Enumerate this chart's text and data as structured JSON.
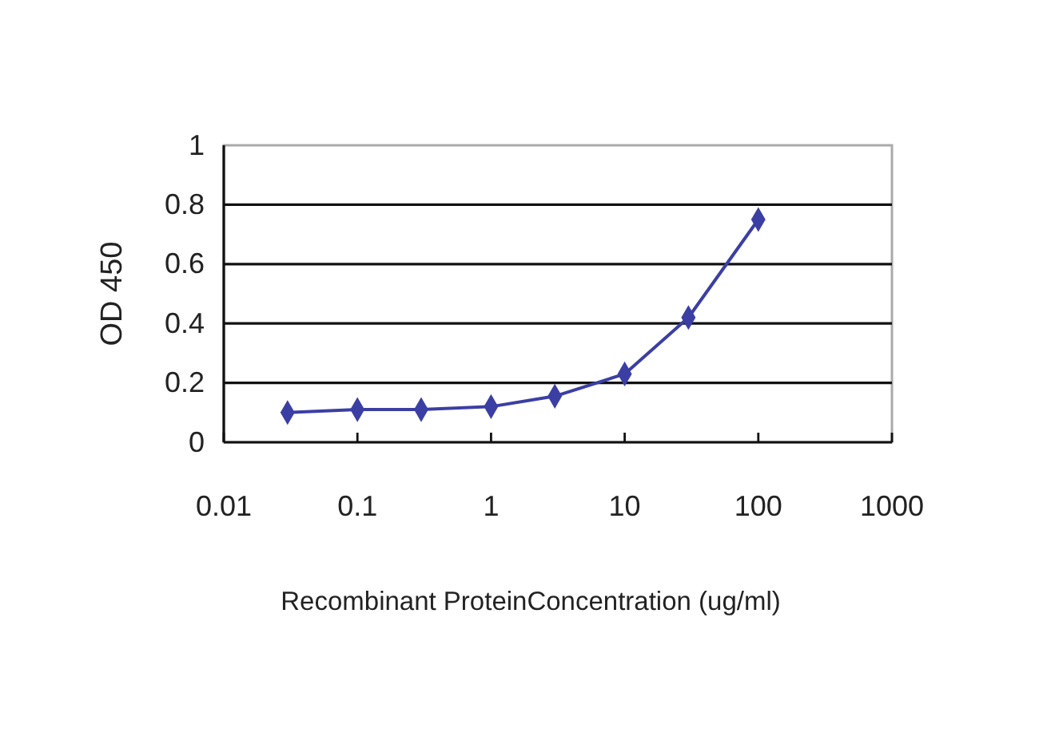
{
  "chart_data": {
    "type": "line",
    "xlabel": "Recombinant ProteinConcentration (ug/ml)",
    "ylabel": "OD 450",
    "x": [
      0.03,
      0.1,
      0.3,
      1,
      3,
      10,
      30,
      100
    ],
    "series": [
      {
        "color": "#3b3fa3",
        "values": [
          0.1,
          0.11,
          0.11,
          0.12,
          0.155,
          0.23,
          0.42,
          0.75
        ]
      }
    ],
    "log": "x",
    "xlim": [
      0.01,
      1000
    ],
    "xticks": [
      0.01,
      0.1,
      1,
      10,
      100,
      1000
    ],
    "ylim": [
      0,
      1
    ],
    "yticks": [
      0,
      0.2,
      0.4,
      0.6,
      0.8,
      1
    ],
    "grid": "y",
    "marker": "diamond",
    "line_style": "solid"
  }
}
